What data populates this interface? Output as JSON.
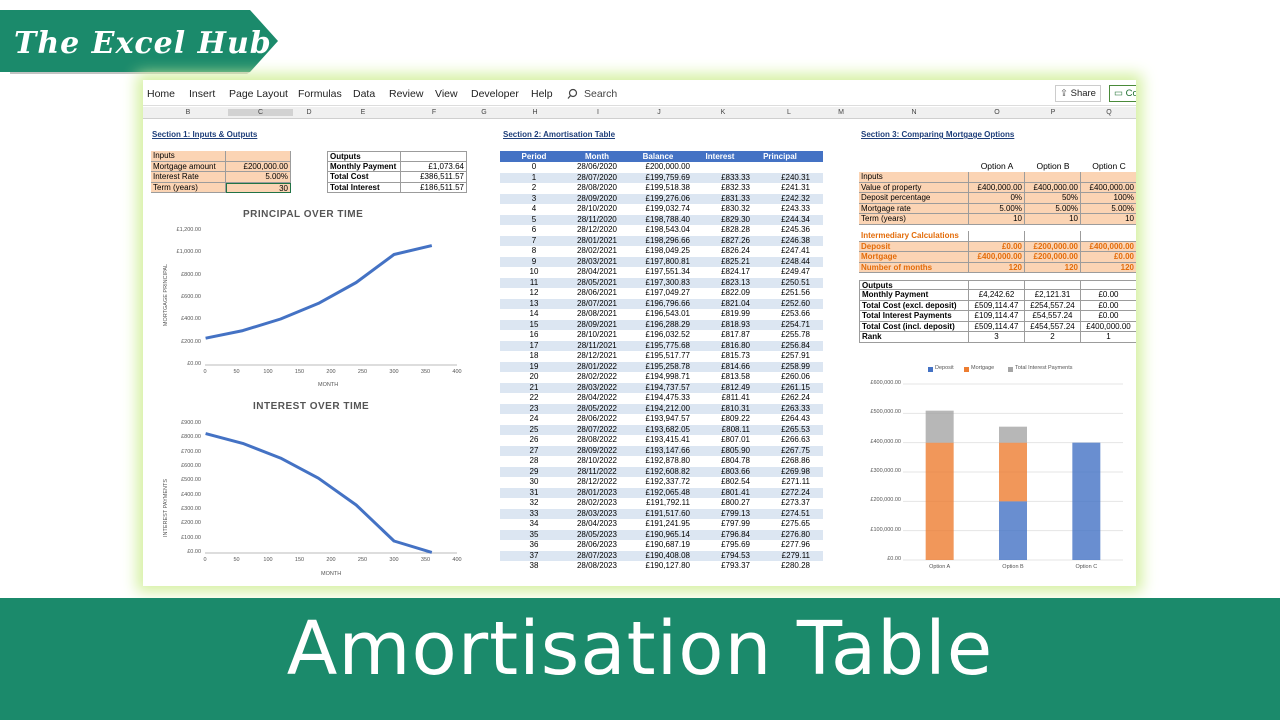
{
  "banner": {
    "title": "The Excel Hub"
  },
  "ribbon": {
    "menu": [
      "Home",
      "Insert",
      "Page Layout",
      "Formulas",
      "Data",
      "Review",
      "View",
      "Developer",
      "Help"
    ],
    "search": "Search",
    "share": "Share",
    "comments": "Co"
  },
  "columns": [
    "B",
    "C",
    "D",
    "E",
    "F",
    "G",
    "H",
    "I",
    "J",
    "K",
    "L",
    "M",
    "N",
    "O",
    "P",
    "Q"
  ],
  "section1": {
    "title": "Section 1: Inputs & Outputs",
    "inputs_header": "Inputs",
    "mortgage_label": "Mortgage amount",
    "mortgage_value": "£200,000.00",
    "rate_label": "Interest Rate",
    "rate_value": "5.00%",
    "term_label": "Term (years)",
    "term_value": "30",
    "outputs_header": "Outputs",
    "monthly_label": "Monthly Payment",
    "monthly_value": "£1,073.64",
    "cost_label": "Total Cost",
    "cost_value": "£386,511.57",
    "interest_label": "Total Interest",
    "interest_value": "£186,511.57"
  },
  "chart1": {
    "title": "PRINCIPAL OVER TIME",
    "ylabel": "MORTGAGE PRINCIPAL",
    "xlabel": "MONTH",
    "yticks": [
      "£1,200.00",
      "£1,000.00",
      "£800.00",
      "£600.00",
      "£400.00",
      "£200.00",
      "£0.00"
    ],
    "xticks": [
      "0",
      "50",
      "100",
      "150",
      "200",
      "250",
      "300",
      "350",
      "400"
    ]
  },
  "chart2": {
    "title": "INTEREST OVER TIME",
    "ylabel": "INTEREST PAYMENTS",
    "xlabel": "MONTH",
    "yticks": [
      "£900.00",
      "£800.00",
      "£700.00",
      "£600.00",
      "£500.00",
      "£400.00",
      "£300.00",
      "£200.00",
      "£100.00",
      "£0.00"
    ],
    "xticks": [
      "0",
      "50",
      "100",
      "150",
      "200",
      "250",
      "300",
      "350",
      "400"
    ]
  },
  "section2": {
    "title": "Section 2: Amortisation Table",
    "headers": [
      "Period",
      "Month",
      "Balance",
      "Interest",
      "Principal"
    ],
    "rows": [
      [
        "0",
        "28/06/2020",
        "£200,000.00",
        "",
        ""
      ],
      [
        "1",
        "28/07/2020",
        "£199,759.69",
        "£833.33",
        "£240.31"
      ],
      [
        "2",
        "28/08/2020",
        "£199,518.38",
        "£832.33",
        "£241.31"
      ],
      [
        "3",
        "28/09/2020",
        "£199,276.06",
        "£831.33",
        "£242.32"
      ],
      [
        "4",
        "28/10/2020",
        "£199,032.74",
        "£830.32",
        "£243.33"
      ],
      [
        "5",
        "28/11/2020",
        "£198,788.40",
        "£829.30",
        "£244.34"
      ],
      [
        "6",
        "28/12/2020",
        "£198,543.04",
        "£828.28",
        "£245.36"
      ],
      [
        "7",
        "28/01/2021",
        "£198,296.66",
        "£827.26",
        "£246.38"
      ],
      [
        "8",
        "28/02/2021",
        "£198,049.25",
        "£826.24",
        "£247.41"
      ],
      [
        "9",
        "28/03/2021",
        "£197,800.81",
        "£825.21",
        "£248.44"
      ],
      [
        "10",
        "28/04/2021",
        "£197,551.34",
        "£824.17",
        "£249.47"
      ],
      [
        "11",
        "28/05/2021",
        "£197,300.83",
        "£823.13",
        "£250.51"
      ],
      [
        "12",
        "28/06/2021",
        "£197,049.27",
        "£822.09",
        "£251.56"
      ],
      [
        "13",
        "28/07/2021",
        "£196,796.66",
        "£821.04",
        "£252.60"
      ],
      [
        "14",
        "28/08/2021",
        "£196,543.01",
        "£819.99",
        "£253.66"
      ],
      [
        "15",
        "28/09/2021",
        "£196,288.29",
        "£818.93",
        "£254.71"
      ],
      [
        "16",
        "28/10/2021",
        "£196,032.52",
        "£817.87",
        "£255.78"
      ],
      [
        "17",
        "28/11/2021",
        "£195,775.68",
        "£816.80",
        "£256.84"
      ],
      [
        "18",
        "28/12/2021",
        "£195,517.77",
        "£815.73",
        "£257.91"
      ],
      [
        "19",
        "28/01/2022",
        "£195,258.78",
        "£814.66",
        "£258.99"
      ],
      [
        "20",
        "28/02/2022",
        "£194,998.71",
        "£813.58",
        "£260.06"
      ],
      [
        "21",
        "28/03/2022",
        "£194,737.57",
        "£812.49",
        "£261.15"
      ],
      [
        "22",
        "28/04/2022",
        "£194,475.33",
        "£811.41",
        "£262.24"
      ],
      [
        "23",
        "28/05/2022",
        "£194,212.00",
        "£810.31",
        "£263.33"
      ],
      [
        "24",
        "28/06/2022",
        "£193,947.57",
        "£809.22",
        "£264.43"
      ],
      [
        "25",
        "28/07/2022",
        "£193,682.05",
        "£808.11",
        "£265.53"
      ],
      [
        "26",
        "28/08/2022",
        "£193,415.41",
        "£807.01",
        "£266.63"
      ],
      [
        "27",
        "28/09/2022",
        "£193,147.66",
        "£805.90",
        "£267.75"
      ],
      [
        "28",
        "28/10/2022",
        "£192,878.80",
        "£804.78",
        "£268.86"
      ],
      [
        "29",
        "28/11/2022",
        "£192,608.82",
        "£803.66",
        "£269.98"
      ],
      [
        "30",
        "28/12/2022",
        "£192,337.72",
        "£802.54",
        "£271.11"
      ],
      [
        "31",
        "28/01/2023",
        "£192,065.48",
        "£801.41",
        "£272.24"
      ],
      [
        "32",
        "28/02/2023",
        "£191,792.11",
        "£800.27",
        "£273.37"
      ],
      [
        "33",
        "28/03/2023",
        "£191,517.60",
        "£799.13",
        "£274.51"
      ],
      [
        "34",
        "28/04/2023",
        "£191,241.95",
        "£797.99",
        "£275.65"
      ],
      [
        "35",
        "28/05/2023",
        "£190,965.14",
        "£796.84",
        "£276.80"
      ],
      [
        "36",
        "28/06/2023",
        "£190,687.19",
        "£795.69",
        "£277.96"
      ],
      [
        "37",
        "28/07/2023",
        "£190,408.08",
        "£794.53",
        "£279.11"
      ],
      [
        "38",
        "28/08/2023",
        "£190,127.80",
        "£793.37",
        "£280.28"
      ]
    ]
  },
  "section3": {
    "title": "Section 3: Comparing Mortgage Options",
    "options": [
      "Option A",
      "Option B",
      "Option C"
    ],
    "inputs_header": "Inputs",
    "inputs": [
      [
        "Value of property",
        "£400,000.00",
        "£400,000.00",
        "£400,000.00"
      ],
      [
        "Deposit percentage",
        "0%",
        "50%",
        "100%"
      ],
      [
        "Mortgage rate",
        "5.00%",
        "5.00%",
        "5.00%"
      ],
      [
        "Term (years)",
        "10",
        "10",
        "10"
      ]
    ],
    "inter_header": "Intermediary Calculations",
    "inter": [
      [
        "Deposit",
        "£0.00",
        "£200,000.00",
        "£400,000.00"
      ],
      [
        "Mortgage",
        "£400,000.00",
        "£200,000.00",
        "£0.00"
      ],
      [
        "Number of months",
        "120",
        "120",
        "120"
      ]
    ],
    "outputs_header": "Outputs",
    "outputs": [
      [
        "Monthly Payment",
        "£4,242.62",
        "£2,121.31",
        "£0.00"
      ],
      [
        "Total Cost (excl. deposit)",
        "£509,114.47",
        "£254,557.24",
        "£0.00"
      ],
      [
        "Total Interest Payments",
        "£109,114.47",
        "£54,557.24",
        "£0.00"
      ],
      [
        "Total Cost (incl. deposit)",
        "£509,114.47",
        "£454,557.24",
        "£400,000.00"
      ],
      [
        "Rank",
        "3",
        "2",
        "1"
      ]
    ]
  },
  "chart3": {
    "legend": [
      "Deposit",
      "Mortgage",
      "Total Interest Payments"
    ],
    "yticks": [
      "£600,000.00",
      "£500,000.00",
      "£400,000.00",
      "£300,000.00",
      "£200,000.00",
      "£100,000.00",
      "£0.00"
    ],
    "colors": {
      "deposit": "#4472c4",
      "mortgage": "#ed7d31",
      "interest": "#a5a5a5"
    }
  },
  "chart_data": [
    {
      "type": "line",
      "title": "PRINCIPAL OVER TIME",
      "xlabel": "MONTH",
      "ylabel": "MORTGAGE PRINCIPAL",
      "xlim": [
        0,
        400
      ],
      "ylim": [
        0,
        1200
      ],
      "x": [
        1,
        60,
        120,
        180,
        240,
        300,
        360
      ],
      "y": [
        240.31,
        308,
        412,
        552,
        739,
        990,
        1069
      ]
    },
    {
      "type": "line",
      "title": "INTEREST OVER TIME",
      "xlabel": "MONTH",
      "ylabel": "INTEREST PAYMENTS",
      "xlim": [
        0,
        400
      ],
      "ylim": [
        0,
        900
      ],
      "x": [
        1,
        60,
        120,
        180,
        240,
        300,
        360
      ],
      "y": [
        833.33,
        765,
        662,
        522,
        335,
        84,
        4.45
      ]
    },
    {
      "type": "bar",
      "stacked": true,
      "categories": [
        "Option A",
        "Option B",
        "Option C"
      ],
      "ylim": [
        0,
        600000
      ],
      "series": [
        {
          "name": "Deposit",
          "values": [
            0,
            200000,
            400000
          ]
        },
        {
          "name": "Mortgage",
          "values": [
            400000,
            200000,
            0
          ]
        },
        {
          "name": "Total Interest Payments",
          "values": [
            109114.47,
            54557.24,
            0
          ]
        }
      ]
    }
  ],
  "bottom": {
    "title": "Amortisation Table"
  }
}
